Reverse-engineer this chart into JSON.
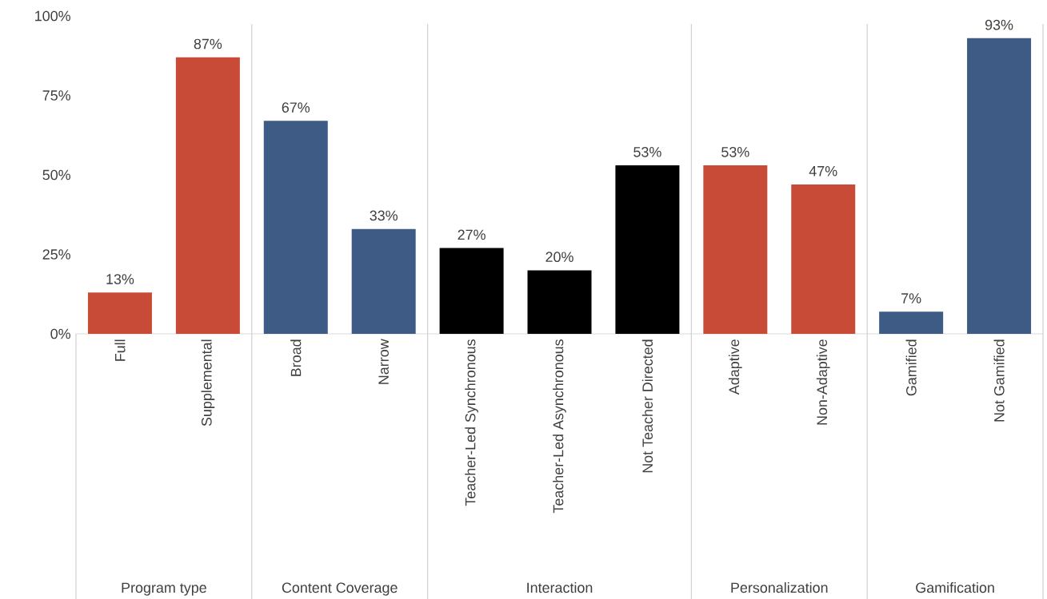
{
  "chart_data": {
    "type": "bar",
    "categories": [
      "Full",
      "Supplemental",
      "Broad",
      "Narrow",
      "Teacher-Led Synchronous",
      "Teacher-Led Asynchronous",
      "Not Teacher Directed",
      "Adaptive",
      "Non-Adaptive",
      "Gamified",
      "Not Gamified"
    ],
    "values": [
      13,
      87,
      67,
      33,
      27,
      20,
      53,
      53,
      47,
      7,
      93
    ],
    "value_labels": [
      "13%",
      "87%",
      "67%",
      "33%",
      "27%",
      "20%",
      "53%",
      "53%",
      "47%",
      "7%",
      "93%"
    ],
    "colors": [
      "#c84b37",
      "#c84b37",
      "#3e5b86",
      "#3e5b86",
      "#000000",
      "#000000",
      "#000000",
      "#c84b37",
      "#c84b37",
      "#3e5b86",
      "#3e5b86"
    ],
    "ylim": [
      0,
      100
    ],
    "yticks": [
      {
        "value": 0,
        "label": "0%"
      },
      {
        "value": 25,
        "label": "25%"
      },
      {
        "value": 50,
        "label": "50%"
      },
      {
        "value": 75,
        "label": "75%"
      },
      {
        "value": 100,
        "label": "100%"
      }
    ],
    "grid": false,
    "annotations": [
      "Program type",
      "Content Coverage",
      "Interaction",
      "Personalization",
      "Gamification"
    ]
  }
}
